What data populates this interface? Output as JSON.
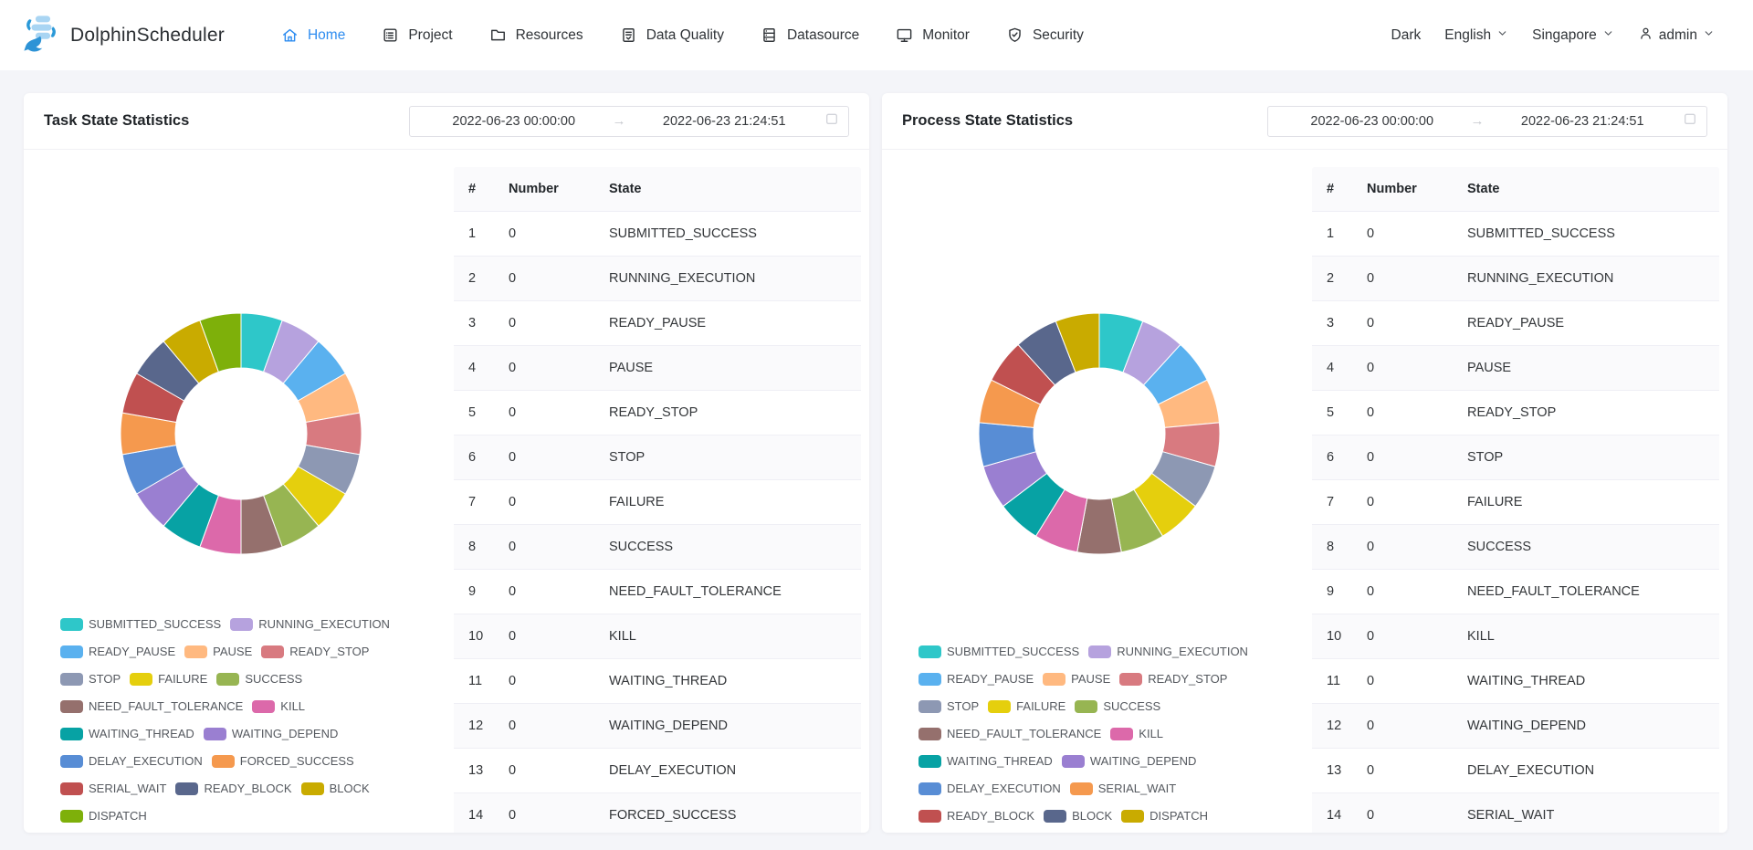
{
  "header": {
    "logo_text": "DolphinScheduler",
    "nav": [
      {
        "label": "Home",
        "icon": "home-icon",
        "active": true
      },
      {
        "label": "Project",
        "icon": "project-icon",
        "active": false
      },
      {
        "label": "Resources",
        "icon": "folder-icon",
        "active": false
      },
      {
        "label": "Data Quality",
        "icon": "data-quality-icon",
        "active": false
      },
      {
        "label": "Datasource",
        "icon": "datasource-icon",
        "active": false
      },
      {
        "label": "Monitor",
        "icon": "monitor-icon",
        "active": false
      },
      {
        "label": "Security",
        "icon": "security-shield-icon",
        "active": false
      }
    ],
    "theme_label": "Dark",
    "language": "English",
    "timezone": "Singapore",
    "user": "admin"
  },
  "colors": {
    "primary": "#2d8cf0",
    "page_bg": "#f4f5f9",
    "panel_bg": "#ffffff",
    "table_border": "#efeff5",
    "table_header_bg": "#fafafc",
    "stripe_bg": "#fafafc"
  },
  "panels": [
    {
      "title": "Task State Statistics",
      "date_start": "2022-06-23 00:00:00",
      "date_end": "2022-06-23 21:24:51",
      "table": {
        "columns": [
          "#",
          "Number",
          "State"
        ],
        "rows": [
          [
            "1",
            "0",
            "SUBMITTED_SUCCESS"
          ],
          [
            "2",
            "0",
            "RUNNING_EXECUTION"
          ],
          [
            "3",
            "0",
            "READY_PAUSE"
          ],
          [
            "4",
            "0",
            "PAUSE"
          ],
          [
            "5",
            "0",
            "READY_STOP"
          ],
          [
            "6",
            "0",
            "STOP"
          ],
          [
            "7",
            "0",
            "FAILURE"
          ],
          [
            "8",
            "0",
            "SUCCESS"
          ],
          [
            "9",
            "0",
            "NEED_FAULT_TOLERANCE"
          ],
          [
            "10",
            "0",
            "KILL"
          ],
          [
            "11",
            "0",
            "WAITING_THREAD"
          ],
          [
            "12",
            "0",
            "WAITING_DEPEND"
          ],
          [
            "13",
            "0",
            "DELAY_EXECUTION"
          ],
          [
            "14",
            "0",
            "FORCED_SUCCESS"
          ]
        ]
      }
    },
    {
      "title": "Process State Statistics",
      "date_start": "2022-06-23 00:00:00",
      "date_end": "2022-06-23 21:24:51",
      "table": {
        "columns": [
          "#",
          "Number",
          "State"
        ],
        "rows": [
          [
            "1",
            "0",
            "SUBMITTED_SUCCESS"
          ],
          [
            "2",
            "0",
            "RUNNING_EXECUTION"
          ],
          [
            "3",
            "0",
            "READY_PAUSE"
          ],
          [
            "4",
            "0",
            "PAUSE"
          ],
          [
            "5",
            "0",
            "READY_STOP"
          ],
          [
            "6",
            "0",
            "STOP"
          ],
          [
            "7",
            "0",
            "FAILURE"
          ],
          [
            "8",
            "0",
            "SUCCESS"
          ],
          [
            "9",
            "0",
            "NEED_FAULT_TOLERANCE"
          ],
          [
            "10",
            "0",
            "KILL"
          ],
          [
            "11",
            "0",
            "WAITING_THREAD"
          ],
          [
            "12",
            "0",
            "WAITING_DEPEND"
          ],
          [
            "13",
            "0",
            "DELAY_EXECUTION"
          ],
          [
            "14",
            "0",
            "SERIAL_WAIT"
          ]
        ]
      }
    }
  ],
  "chart_data": [
    {
      "type": "pie",
      "donut": true,
      "title": "Task State Statistics",
      "values_all_zero": true,
      "legend_position": "bottom-left",
      "segments": [
        {
          "label": "SUBMITTED_SUCCESS",
          "value": 0,
          "color": "#2ec7c9"
        },
        {
          "label": "RUNNING_EXECUTION",
          "value": 0,
          "color": "#b6a2de"
        },
        {
          "label": "READY_PAUSE",
          "value": 0,
          "color": "#5ab1ef"
        },
        {
          "label": "PAUSE",
          "value": 0,
          "color": "#ffb980"
        },
        {
          "label": "READY_STOP",
          "value": 0,
          "color": "#d87a80"
        },
        {
          "label": "STOP",
          "value": 0,
          "color": "#8d98b3"
        },
        {
          "label": "FAILURE",
          "value": 0,
          "color": "#e5cf0d"
        },
        {
          "label": "SUCCESS",
          "value": 0,
          "color": "#97b552"
        },
        {
          "label": "NEED_FAULT_TOLERANCE",
          "value": 0,
          "color": "#95706d"
        },
        {
          "label": "KILL",
          "value": 0,
          "color": "#dc69aa"
        },
        {
          "label": "WAITING_THREAD",
          "value": 0,
          "color": "#07a2a4"
        },
        {
          "label": "WAITING_DEPEND",
          "value": 0,
          "color": "#9a7fd1"
        },
        {
          "label": "DELAY_EXECUTION",
          "value": 0,
          "color": "#588dd5"
        },
        {
          "label": "FORCED_SUCCESS",
          "value": 0,
          "color": "#f5994e"
        },
        {
          "label": "SERIAL_WAIT",
          "value": 0,
          "color": "#c05050"
        },
        {
          "label": "READY_BLOCK",
          "value": 0,
          "color": "#59678c"
        },
        {
          "label": "BLOCK",
          "value": 0,
          "color": "#c9ab00"
        },
        {
          "label": "DISPATCH",
          "value": 0,
          "color": "#7eb00a"
        }
      ]
    },
    {
      "type": "pie",
      "donut": true,
      "title": "Process State Statistics",
      "values_all_zero": true,
      "legend_position": "bottom-left",
      "segments": [
        {
          "label": "SUBMITTED_SUCCESS",
          "value": 0,
          "color": "#2ec7c9"
        },
        {
          "label": "RUNNING_EXECUTION",
          "value": 0,
          "color": "#b6a2de"
        },
        {
          "label": "READY_PAUSE",
          "value": 0,
          "color": "#5ab1ef"
        },
        {
          "label": "PAUSE",
          "value": 0,
          "color": "#ffb980"
        },
        {
          "label": "READY_STOP",
          "value": 0,
          "color": "#d87a80"
        },
        {
          "label": "STOP",
          "value": 0,
          "color": "#8d98b3"
        },
        {
          "label": "FAILURE",
          "value": 0,
          "color": "#e5cf0d"
        },
        {
          "label": "SUCCESS",
          "value": 0,
          "color": "#97b552"
        },
        {
          "label": "NEED_FAULT_TOLERANCE",
          "value": 0,
          "color": "#95706d"
        },
        {
          "label": "KILL",
          "value": 0,
          "color": "#dc69aa"
        },
        {
          "label": "WAITING_THREAD",
          "value": 0,
          "color": "#07a2a4"
        },
        {
          "label": "WAITING_DEPEND",
          "value": 0,
          "color": "#9a7fd1"
        },
        {
          "label": "DELAY_EXECUTION",
          "value": 0,
          "color": "#588dd5"
        },
        {
          "label": "SERIAL_WAIT",
          "value": 0,
          "color": "#f5994e"
        },
        {
          "label": "READY_BLOCK",
          "value": 0,
          "color": "#c05050"
        },
        {
          "label": "BLOCK",
          "value": 0,
          "color": "#59678c"
        },
        {
          "label": "DISPATCH",
          "value": 0,
          "color": "#c9ab00"
        }
      ]
    }
  ]
}
